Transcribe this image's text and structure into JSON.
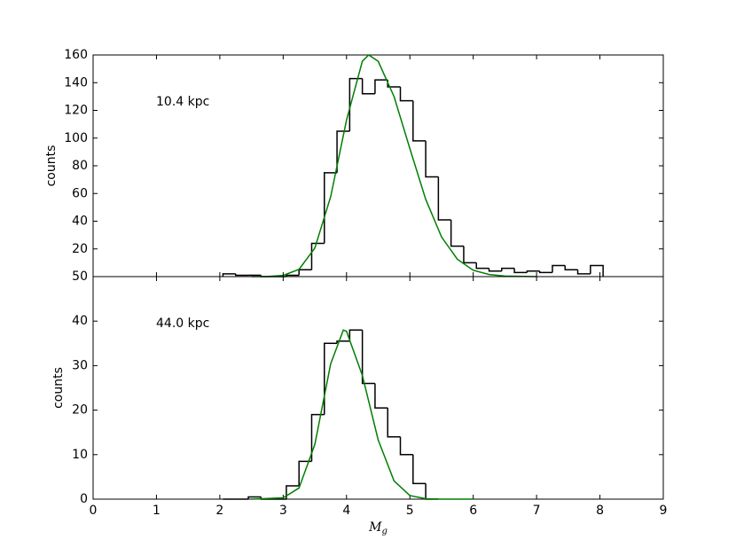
{
  "chart_data": [
    {
      "type": "histogram",
      "annotation": "10.4 kpc",
      "ylabel": "counts",
      "bins": [
        2.05,
        2.25,
        2.45,
        2.65,
        2.85,
        3.05,
        3.25,
        3.45,
        3.65,
        3.85,
        4.05,
        4.25,
        4.45,
        4.65,
        4.85,
        5.05,
        5.25,
        5.45,
        5.65,
        5.85,
        6.05,
        6.25,
        6.45,
        6.65,
        6.85,
        7.05,
        7.25,
        7.45,
        7.65,
        7.85,
        8.05
      ],
      "values": [
        2,
        1,
        1,
        0,
        0,
        1,
        5,
        24,
        75,
        105,
        143,
        132,
        142,
        137,
        127,
        98,
        72,
        41,
        22,
        10,
        6,
        4,
        6,
        3,
        4,
        3,
        8,
        5,
        2,
        8
      ],
      "color": "#000000",
      "fit": {
        "color": "#007f00",
        "x": [
          2.5,
          2.75,
          3.0,
          3.25,
          3.5,
          3.75,
          4.0,
          4.25,
          4.35,
          4.5,
          4.75,
          5.0,
          5.25,
          5.5,
          5.75,
          6.0,
          6.25,
          6.5,
          7.0
        ],
        "values": [
          0,
          0.1,
          0.9,
          5.2,
          20.6,
          57.7,
          113,
          155.5,
          160,
          155.4,
          130,
          92.4,
          55.8,
          28.6,
          12.5,
          4.6,
          1.5,
          0.4,
          0
        ]
      },
      "xlim": [
        0,
        9
      ],
      "ylim": [
        0,
        160
      ],
      "yticks": [
        20,
        40,
        60,
        80,
        100,
        120,
        140,
        160
      ]
    },
    {
      "type": "histogram",
      "annotation": "44.0 kpc",
      "ylabel": "counts",
      "xlabel": "M_g",
      "bins": [
        2.05,
        2.25,
        2.45,
        2.65,
        2.85,
        3.05,
        3.25,
        3.45,
        3.65,
        3.85,
        4.05,
        4.25,
        4.45,
        4.65,
        4.85,
        5.05,
        5.25,
        5.45
      ],
      "values": [
        0,
        0,
        0.5,
        0,
        0,
        3,
        8.5,
        19,
        35,
        35.5,
        38,
        26,
        20.5,
        14,
        10,
        3.5,
        0
      ],
      "color": "#000000",
      "fit": {
        "color": "#007f00",
        "x": [
          2.5,
          3.0,
          3.25,
          3.5,
          3.75,
          3.95,
          4.0,
          4.25,
          4.5,
          4.75,
          5.0,
          5.25,
          5.5,
          6.0
        ],
        "values": [
          0,
          0.3,
          2.5,
          12.3,
          30.4,
          38,
          37.7,
          27.8,
          13.3,
          4.1,
          0.8,
          0.1,
          0,
          0
        ]
      },
      "xlim": [
        0,
        9
      ],
      "ylim": [
        0,
        50
      ],
      "yticks": [
        0,
        10,
        20,
        30,
        40,
        50
      ],
      "xticks": [
        0,
        1,
        2,
        3,
        4,
        5,
        6,
        7,
        8,
        9
      ]
    }
  ]
}
